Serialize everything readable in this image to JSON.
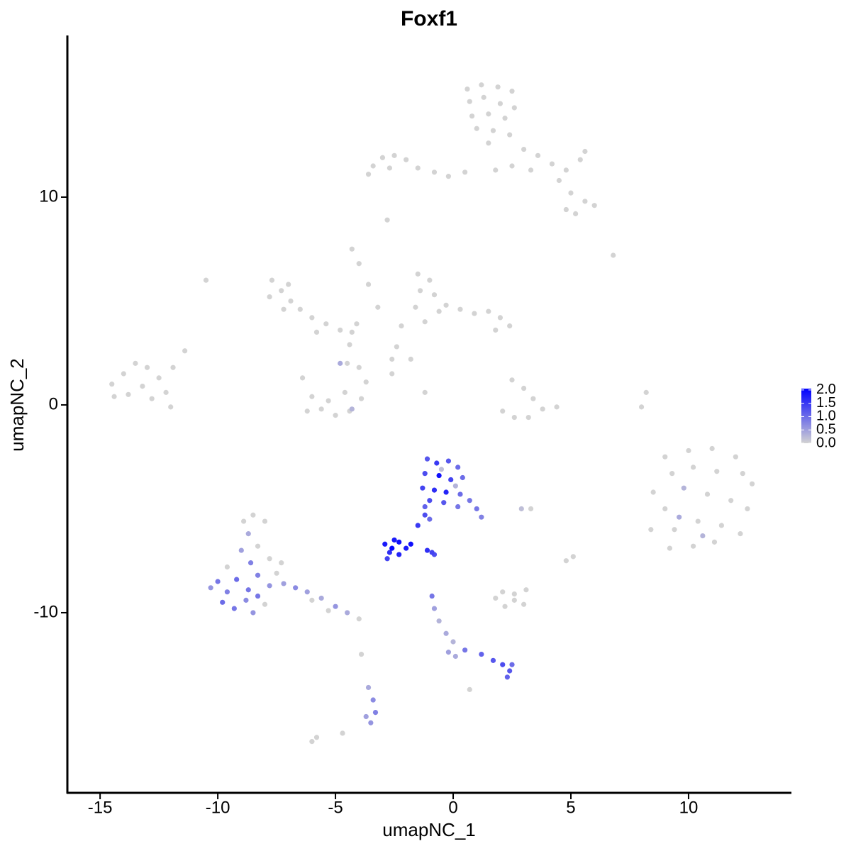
{
  "chart_data": {
    "type": "scatter",
    "title": "Foxf1",
    "x_label": "umapNC_1",
    "y_label": "umapNC_2",
    "xlim": [
      -16.39,
      14.37
    ],
    "ylim": [
      -18.67,
      17.78
    ],
    "xticks": [
      -15,
      -10,
      -5,
      0,
      5,
      10
    ],
    "yticks": [
      -10,
      0,
      10
    ],
    "colorbar": {
      "lim": [
        0,
        2.05
      ],
      "low": "#d3d3d3",
      "high": "#0000ff",
      "ticks": [
        {
          "value": 0,
          "label": "0.0"
        },
        {
          "value": 0.5,
          "label": "0.5"
        },
        {
          "value": 1,
          "label": "1.0"
        },
        {
          "value": 1.5,
          "label": "1.5"
        },
        {
          "value": 2,
          "label": "2.0"
        }
      ]
    },
    "points": [
      [
        0.6,
        15.2,
        0
      ],
      [
        1.2,
        15.4,
        0
      ],
      [
        1.9,
        15.3,
        0
      ],
      [
        2.5,
        15.1,
        0
      ],
      [
        0.7,
        14.6,
        0
      ],
      [
        1.3,
        14.8,
        0
      ],
      [
        2.0,
        14.5,
        0
      ],
      [
        2.6,
        14.3,
        0
      ],
      [
        0.8,
        13.9,
        0
      ],
      [
        1.5,
        14.0,
        0
      ],
      [
        2.2,
        13.8,
        0
      ],
      [
        1.0,
        13.3,
        0
      ],
      [
        1.7,
        13.2,
        0
      ],
      [
        2.4,
        13.0,
        0
      ],
      [
        1.5,
        12.6,
        0
      ],
      [
        3.0,
        12.3,
        0
      ],
      [
        3.6,
        12.0,
        0
      ],
      [
        4.2,
        11.6,
        0
      ],
      [
        4.8,
        11.3,
        0
      ],
      [
        5.4,
        11.8,
        0
      ],
      [
        5.6,
        12.2,
        0
      ],
      [
        4.5,
        10.8,
        0
      ],
      [
        5.0,
        10.2,
        0
      ],
      [
        5.6,
        9.8,
        0
      ],
      [
        6.0,
        9.6,
        0
      ],
      [
        5.2,
        9.2,
        0
      ],
      [
        4.8,
        9.4,
        0
      ],
      [
        3.3,
        11.3,
        0
      ],
      [
        2.5,
        11.5,
        0
      ],
      [
        1.8,
        11.3,
        0
      ],
      [
        -3.4,
        11.5,
        0
      ],
      [
        -3.0,
        11.9,
        0
      ],
      [
        -2.5,
        12.0,
        0
      ],
      [
        -2.0,
        11.8,
        0
      ],
      [
        -2.7,
        11.4,
        0
      ],
      [
        -1.5,
        11.4,
        0
      ],
      [
        -0.8,
        11.2,
        0
      ],
      [
        -0.2,
        11.0,
        0
      ],
      [
        0.5,
        11.2,
        0
      ],
      [
        -3.6,
        11.1,
        0
      ],
      [
        -2.8,
        8.9,
        0
      ],
      [
        -7.7,
        6.0,
        0
      ],
      [
        -7.3,
        5.5,
        0
      ],
      [
        -7.8,
        5.2,
        0
      ],
      [
        -6.9,
        5.0,
        0
      ],
      [
        -7.2,
        4.6,
        0
      ],
      [
        -6.5,
        4.6,
        0
      ],
      [
        -6.0,
        4.2,
        0
      ],
      [
        -5.4,
        3.9,
        0
      ],
      [
        -4.8,
        3.6,
        0
      ],
      [
        -4.3,
        3.5,
        0
      ],
      [
        -4.1,
        3.9,
        0
      ],
      [
        -5.8,
        3.5,
        0
      ],
      [
        -7.0,
        5.8,
        0
      ],
      [
        -10.5,
        6.0,
        0
      ],
      [
        -4.3,
        7.5,
        0
      ],
      [
        -4.0,
        6.8,
        0
      ],
      [
        -3.6,
        5.8,
        0
      ],
      [
        -3.2,
        4.7,
        0
      ],
      [
        -4.4,
        2.9,
        0
      ],
      [
        -4.5,
        2.0,
        0
      ],
      [
        -1.5,
        6.3,
        0
      ],
      [
        -1.0,
        6.0,
        0
      ],
      [
        -1.4,
        5.5,
        0
      ],
      [
        -0.8,
        5.3,
        0
      ],
      [
        -1.6,
        4.7,
        0
      ],
      [
        -0.6,
        4.5,
        0
      ],
      [
        -1.2,
        4.0,
        0
      ],
      [
        -0.3,
        4.8,
        0
      ],
      [
        0.3,
        4.6,
        0
      ],
      [
        0.9,
        4.4,
        0
      ],
      [
        1.5,
        4.5,
        0
      ],
      [
        2.0,
        4.2,
        0
      ],
      [
        2.4,
        3.8,
        0
      ],
      [
        1.8,
        3.6,
        0
      ],
      [
        -2.2,
        3.8,
        0
      ],
      [
        -2.4,
        2.8,
        0
      ],
      [
        -2.6,
        2.2,
        0
      ],
      [
        -1.8,
        2.2,
        0
      ],
      [
        -14.5,
        1.0,
        0
      ],
      [
        -14.0,
        1.5,
        0
      ],
      [
        -13.5,
        2.0,
        0
      ],
      [
        -13.0,
        1.8,
        0
      ],
      [
        -12.5,
        1.3,
        0
      ],
      [
        -13.2,
        0.9,
        0
      ],
      [
        -13.8,
        0.5,
        0
      ],
      [
        -12.8,
        0.3,
        0
      ],
      [
        -12.2,
        0.6,
        0
      ],
      [
        -14.4,
        0.4,
        0
      ],
      [
        -11.9,
        1.8,
        0
      ],
      [
        -11.4,
        2.6,
        0
      ],
      [
        -12.0,
        -0.1,
        0
      ],
      [
        -6.4,
        1.3,
        0
      ],
      [
        -6.0,
        0.4,
        0
      ],
      [
        -5.6,
        -0.2,
        0
      ],
      [
        -5.0,
        -0.5,
        0
      ],
      [
        -4.4,
        -0.3,
        0
      ],
      [
        -3.9,
        0.3,
        0
      ],
      [
        -3.7,
        1.1,
        0
      ],
      [
        -4.0,
        1.8,
        0
      ],
      [
        -5.3,
        0.2,
        0
      ],
      [
        -4.6,
        0.6,
        0
      ],
      [
        -6.2,
        -0.3,
        0
      ],
      [
        -4.8,
        2.0,
        0.4
      ],
      [
        -4.3,
        -0.2,
        0.3
      ],
      [
        -2.6,
        1.5,
        0
      ],
      [
        -1.2,
        0.6,
        0
      ],
      [
        2.5,
        1.2,
        0
      ],
      [
        3.0,
        0.8,
        0
      ],
      [
        3.4,
        0.3,
        0
      ],
      [
        3.8,
        -0.2,
        0
      ],
      [
        3.2,
        -0.6,
        0
      ],
      [
        2.6,
        -0.6,
        0
      ],
      [
        2.1,
        -0.3,
        0
      ],
      [
        4.4,
        -0.1,
        0
      ],
      [
        8.2,
        0.6,
        0
      ],
      [
        8.0,
        -0.1,
        0
      ],
      [
        6.8,
        7.2,
        0
      ],
      [
        9.0,
        -2.5,
        0
      ],
      [
        10.0,
        -2.2,
        0
      ],
      [
        11.0,
        -2.1,
        0
      ],
      [
        12.0,
        -2.5,
        0
      ],
      [
        8.5,
        -4.2,
        0
      ],
      [
        9.3,
        -3.3,
        0
      ],
      [
        10.2,
        -3.0,
        0
      ],
      [
        11.2,
        -3.2,
        0
      ],
      [
        12.3,
        -3.3,
        0
      ],
      [
        12.7,
        -3.8,
        0
      ],
      [
        9.0,
        -5.0,
        0
      ],
      [
        9.8,
        -4.0,
        0.3
      ],
      [
        10.8,
        -4.3,
        0
      ],
      [
        11.8,
        -4.6,
        0
      ],
      [
        12.5,
        -5.0,
        0
      ],
      [
        8.4,
        -6.0,
        0
      ],
      [
        9.4,
        -6.0,
        0
      ],
      [
        10.4,
        -5.6,
        0
      ],
      [
        11.4,
        -5.8,
        0
      ],
      [
        12.2,
        -6.2,
        0
      ],
      [
        9.2,
        -6.9,
        0
      ],
      [
        10.2,
        -6.8,
        0
      ],
      [
        11.1,
        -6.6,
        0
      ],
      [
        9.6,
        -5.4,
        0.4
      ],
      [
        10.6,
        -6.3,
        0.3
      ],
      [
        1.8,
        -9.3,
        0
      ],
      [
        2.2,
        -9.7,
        0
      ],
      [
        2.6,
        -9.4,
        0
      ],
      [
        3.0,
        -9.6,
        0
      ],
      [
        2.1,
        -9.0,
        0
      ],
      [
        2.6,
        -9.1,
        0
      ],
      [
        3.1,
        -8.9,
        0
      ],
      [
        4.8,
        -7.5,
        0
      ],
      [
        5.1,
        -7.3,
        0
      ],
      [
        3.3,
        -5.0,
        0
      ],
      [
        2.9,
        -5.0,
        0.2
      ],
      [
        0.7,
        -13.7,
        0
      ],
      [
        -8.9,
        -5.6,
        0
      ],
      [
        -8.5,
        -5.3,
        0
      ],
      [
        -8.0,
        -5.6,
        0
      ],
      [
        -8.3,
        -6.8,
        0
      ],
      [
        -7.8,
        -7.4,
        0
      ],
      [
        -7.5,
        -8.1,
        0
      ],
      [
        -8.0,
        -9.6,
        0
      ],
      [
        -9.6,
        -7.8,
        0
      ],
      [
        -4.0,
        -10.3,
        0
      ],
      [
        -6.0,
        -9.4,
        0
      ],
      [
        -5.3,
        -9.9,
        0
      ],
      [
        -7.3,
        -7.6,
        0
      ],
      [
        -3.9,
        -12.0,
        0
      ],
      [
        -4.7,
        -15.8,
        0
      ],
      [
        -6.0,
        -16.2,
        0
      ],
      [
        -5.8,
        -16.0,
        0
      ],
      [
        -10.0,
        -8.5,
        0.9
      ],
      [
        -9.6,
        -9.0,
        0.8
      ],
      [
        -9.2,
        -8.4,
        1.0
      ],
      [
        -8.7,
        -8.9,
        0.9
      ],
      [
        -8.3,
        -8.2,
        0.8
      ],
      [
        -9.8,
        -9.5,
        1.0
      ],
      [
        -9.3,
        -9.8,
        0.9
      ],
      [
        -8.8,
        -9.4,
        0.7
      ],
      [
        -8.3,
        -9.2,
        0.9
      ],
      [
        -7.8,
        -8.7,
        0.6
      ],
      [
        -8.6,
        -7.6,
        0.8
      ],
      [
        -9.0,
        -7.0,
        0.5
      ],
      [
        -8.7,
        -6.2,
        0.4
      ],
      [
        -10.3,
        -8.8,
        0.6
      ],
      [
        -7.2,
        -8.6,
        0.5
      ],
      [
        -6.7,
        -8.8,
        0.7
      ],
      [
        -6.2,
        -9.0,
        0.5
      ],
      [
        -5.6,
        -9.3,
        0.4
      ],
      [
        -5.0,
        -9.7,
        0.6
      ],
      [
        -4.5,
        -10.0,
        0.4
      ],
      [
        -8.5,
        -10.0,
        0.6
      ],
      [
        -0.9,
        -9.2,
        0.9
      ],
      [
        -0.8,
        -9.8,
        0.5
      ],
      [
        -0.6,
        -10.4,
        0.3
      ],
      [
        -0.3,
        -11.0,
        0.4
      ],
      [
        0.0,
        -11.4,
        0.3
      ],
      [
        -0.2,
        -11.9,
        0.5
      ],
      [
        0.5,
        -11.8,
        0.9
      ],
      [
        1.2,
        -12.0,
        1.1
      ],
      [
        1.7,
        -12.3,
        1.2
      ],
      [
        2.1,
        -12.5,
        1.3
      ],
      [
        2.4,
        -12.8,
        1.2
      ],
      [
        2.5,
        -12.5,
        1.0
      ],
      [
        2.3,
        -13.1,
        1.1
      ],
      [
        0.1,
        -12.1,
        0.4
      ],
      [
        -3.6,
        -13.6,
        0.4
      ],
      [
        -3.4,
        -14.2,
        0.7
      ],
      [
        -3.3,
        -14.8,
        0.8
      ],
      [
        -3.5,
        -15.3,
        0.6
      ],
      [
        -3.7,
        -15.0,
        0.5
      ],
      [
        0.1,
        -3.9,
        0.3
      ],
      [
        -0.5,
        -3.1,
        0.2
      ],
      [
        -1.1,
        -2.6,
        1.2
      ],
      [
        -0.7,
        -2.8,
        1.5
      ],
      [
        -0.2,
        -2.7,
        1.2
      ],
      [
        0.2,
        -3.0,
        1.0
      ],
      [
        -1.2,
        -3.3,
        1.3
      ],
      [
        -0.6,
        -3.4,
        1.9
      ],
      [
        -0.1,
        -3.6,
        1.4
      ],
      [
        0.4,
        -3.5,
        1.0
      ],
      [
        -1.3,
        -4.0,
        1.4
      ],
      [
        -0.8,
        -4.1,
        1.6
      ],
      [
        -0.3,
        -4.2,
        1.7
      ],
      [
        0.3,
        -4.3,
        1.0
      ],
      [
        -1.0,
        -4.6,
        1.3
      ],
      [
        -0.4,
        -4.7,
        1.2
      ],
      [
        0.2,
        -4.9,
        0.9
      ],
      [
        0.7,
        -4.6,
        0.9
      ],
      [
        1.0,
        -5.0,
        0.9
      ],
      [
        1.2,
        -5.4,
        0.8
      ],
      [
        -1.2,
        -4.9,
        1.1
      ],
      [
        -1.0,
        -5.5,
        1.0
      ],
      [
        -1.5,
        -5.8,
        1.5
      ],
      [
        -1.2,
        -5.3,
        1.3
      ],
      [
        -1.1,
        -7.0,
        1.6
      ],
      [
        -0.8,
        -7.2,
        1.3
      ],
      [
        -0.9,
        -7.1,
        1.4
      ],
      [
        -2.8,
        -7.4,
        1.4
      ],
      [
        -2.7,
        -7.1,
        1.6
      ],
      [
        -2.3,
        -7.2,
        1.7
      ],
      [
        -2.9,
        -6.7,
        1.8
      ],
      [
        -2.0,
        -6.9,
        1.8
      ],
      [
        -2.5,
        -6.5,
        1.8
      ],
      [
        -2.3,
        -6.6,
        1.9
      ],
      [
        -1.8,
        -6.7,
        1.9
      ],
      [
        -2.6,
        -6.9,
        2.0
      ]
    ]
  }
}
